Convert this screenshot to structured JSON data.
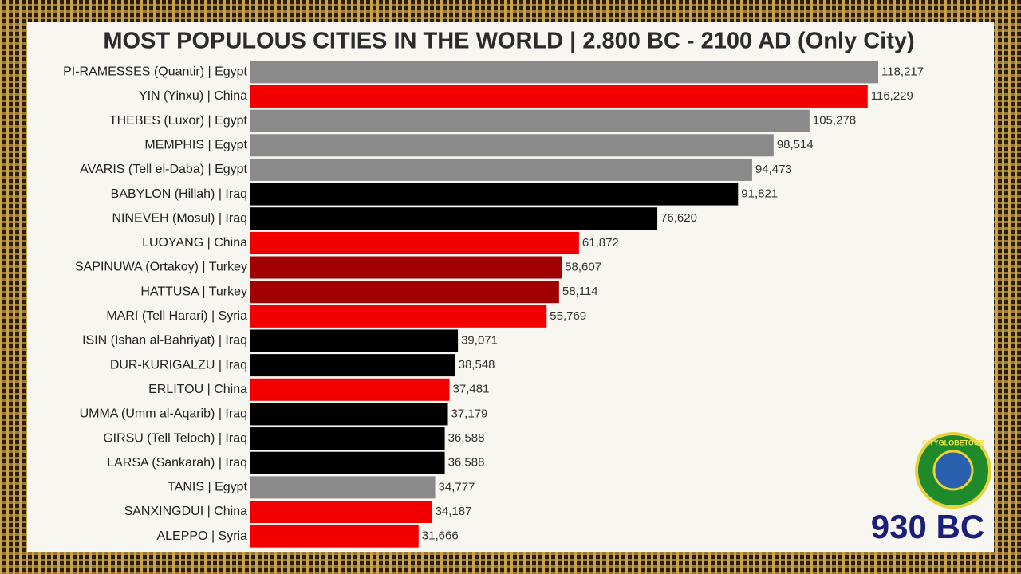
{
  "chart_data": {
    "type": "bar",
    "orientation": "horizontal",
    "title": "MOST POPULOUS CITIES IN THE WORLD | 2.800 BC - 2100 AD (Only City)",
    "categories": [
      "PI-RAMESSES (Quantir) | Egypt",
      "YIN (Yinxu) | China",
      "THEBES (Luxor) | Egypt",
      "MEMPHIS | Egypt",
      "AVARIS (Tell el-Daba) | Egypt",
      "BABYLON (Hillah) | Iraq",
      "NINEVEH (Mosul) | Iraq",
      "LUOYANG | China",
      "SAPINUWA (Ortakoy) | Turkey",
      "HATTUSA | Turkey",
      "MARI (Tell Harari) | Syria",
      "ISIN (Ishan al-Bahriyat) | Iraq",
      "DUR-KURIGALZU | Iraq",
      "ERLITOU | China",
      "UMMA (Umm al-Aqarib) | Iraq",
      "GIRSU (Tell Teloch) | Iraq",
      "LARSA (Sankarah) | Iraq",
      "TANIS | Egypt",
      "SANXINGDUI | China",
      "ALEPPO | Syria"
    ],
    "values": [
      118217,
      116229,
      105278,
      98514,
      94473,
      91821,
      76620,
      61872,
      58607,
      58114,
      55769,
      39071,
      38548,
      37481,
      37179,
      36588,
      36588,
      34777,
      34187,
      31666
    ],
    "value_labels": [
      "118,217",
      "116,229",
      "105,278",
      "98,514",
      "94,473",
      "91,821",
      "76,620",
      "61,872",
      "58,607",
      "58,114",
      "55,769",
      "39,071",
      "38,548",
      "37,481",
      "37,179",
      "36,588",
      "36,588",
      "34,777",
      "34,187",
      "31,666"
    ],
    "colors": [
      "#8a8a8a",
      "#f20000",
      "#8a8a8a",
      "#8a8a8a",
      "#8a8a8a",
      "#000000",
      "#000000",
      "#f20000",
      "#a00000",
      "#a00000",
      "#f20000",
      "#000000",
      "#000000",
      "#f20000",
      "#000000",
      "#000000",
      "#000000",
      "#8a8a8a",
      "#f20000",
      "#f20000"
    ],
    "date_label": "930 BC",
    "logo_text": "CITYGLOBETOUR"
  }
}
